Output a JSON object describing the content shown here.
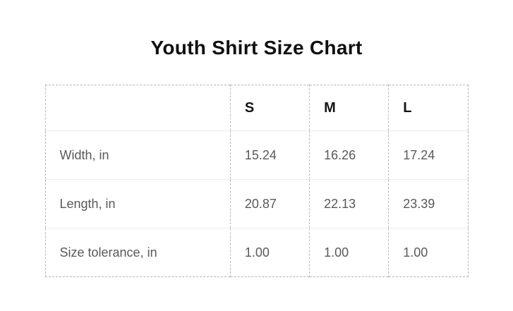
{
  "title": "Youth Shirt Size Chart",
  "colors": {
    "background": "#ffffff",
    "title_text": "#101010",
    "header_text": "#141414",
    "body_text": "#595959",
    "dashed_border": "#b5b5b5",
    "row_divider": "#ebebeb"
  },
  "chart_data": {
    "type": "table",
    "title": "Youth Shirt Size Chart",
    "unit": "in",
    "columns": [
      "",
      "S",
      "M",
      "L"
    ],
    "rows": [
      {
        "label": "Width, in",
        "values": [
          "15.24",
          "16.26",
          "17.24"
        ]
      },
      {
        "label": "Length, in",
        "values": [
          "20.87",
          "22.13",
          "23.39"
        ]
      },
      {
        "label": "Size tolerance, in",
        "values": [
          "1.00",
          "1.00",
          "1.00"
        ]
      }
    ]
  }
}
